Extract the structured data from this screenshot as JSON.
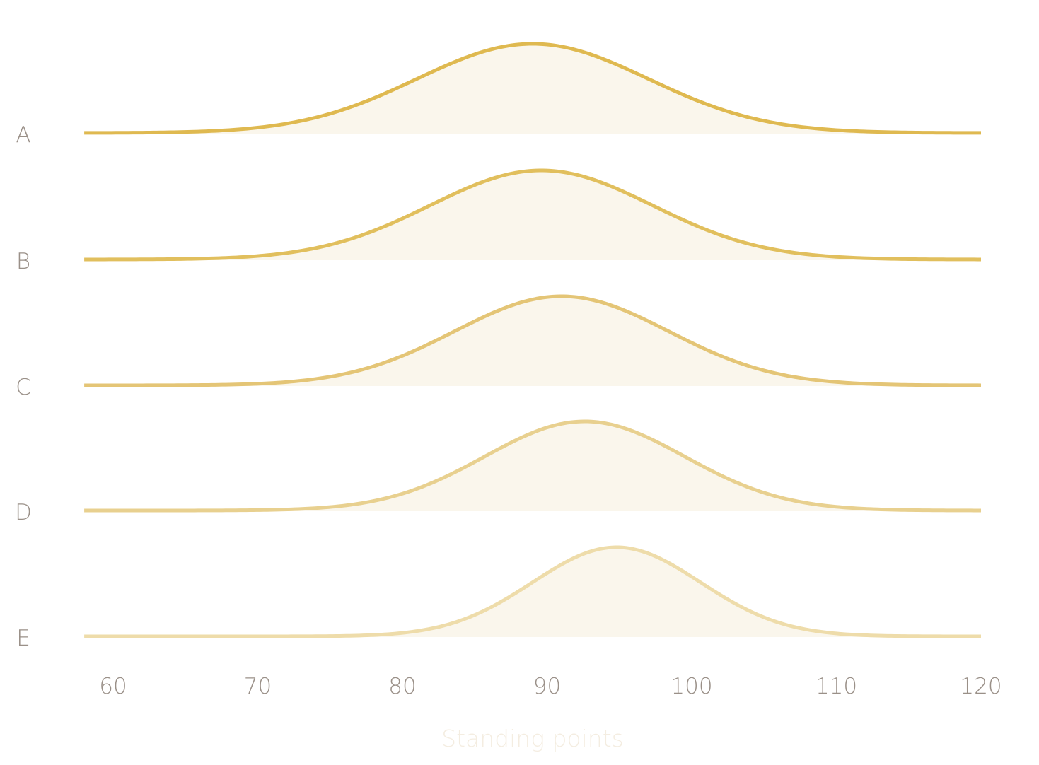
{
  "chart_data": {
    "type": "ridgeline",
    "xlabel": "Standing points",
    "xlim": [
      58,
      120
    ],
    "xticks": [
      "60",
      "70",
      "80",
      "90",
      "100",
      "110",
      "120"
    ],
    "grid": false,
    "legend": "none",
    "fill_color": "#faf6ec",
    "series": [
      {
        "name": "A",
        "peak_x": 89.0,
        "sd": 8.0,
        "color": "#dfb950"
      },
      {
        "name": "B",
        "peak_x": 89.6,
        "sd": 7.7,
        "color": "#e1bf5d"
      },
      {
        "name": "C",
        "peak_x": 91.0,
        "sd": 7.4,
        "color": "#e4c576"
      },
      {
        "name": "D",
        "peak_x": 92.6,
        "sd": 6.9,
        "color": "#e8d08f"
      },
      {
        "name": "E",
        "peak_x": 94.8,
        "sd": 5.8,
        "color": "#eedcaa"
      }
    ]
  }
}
